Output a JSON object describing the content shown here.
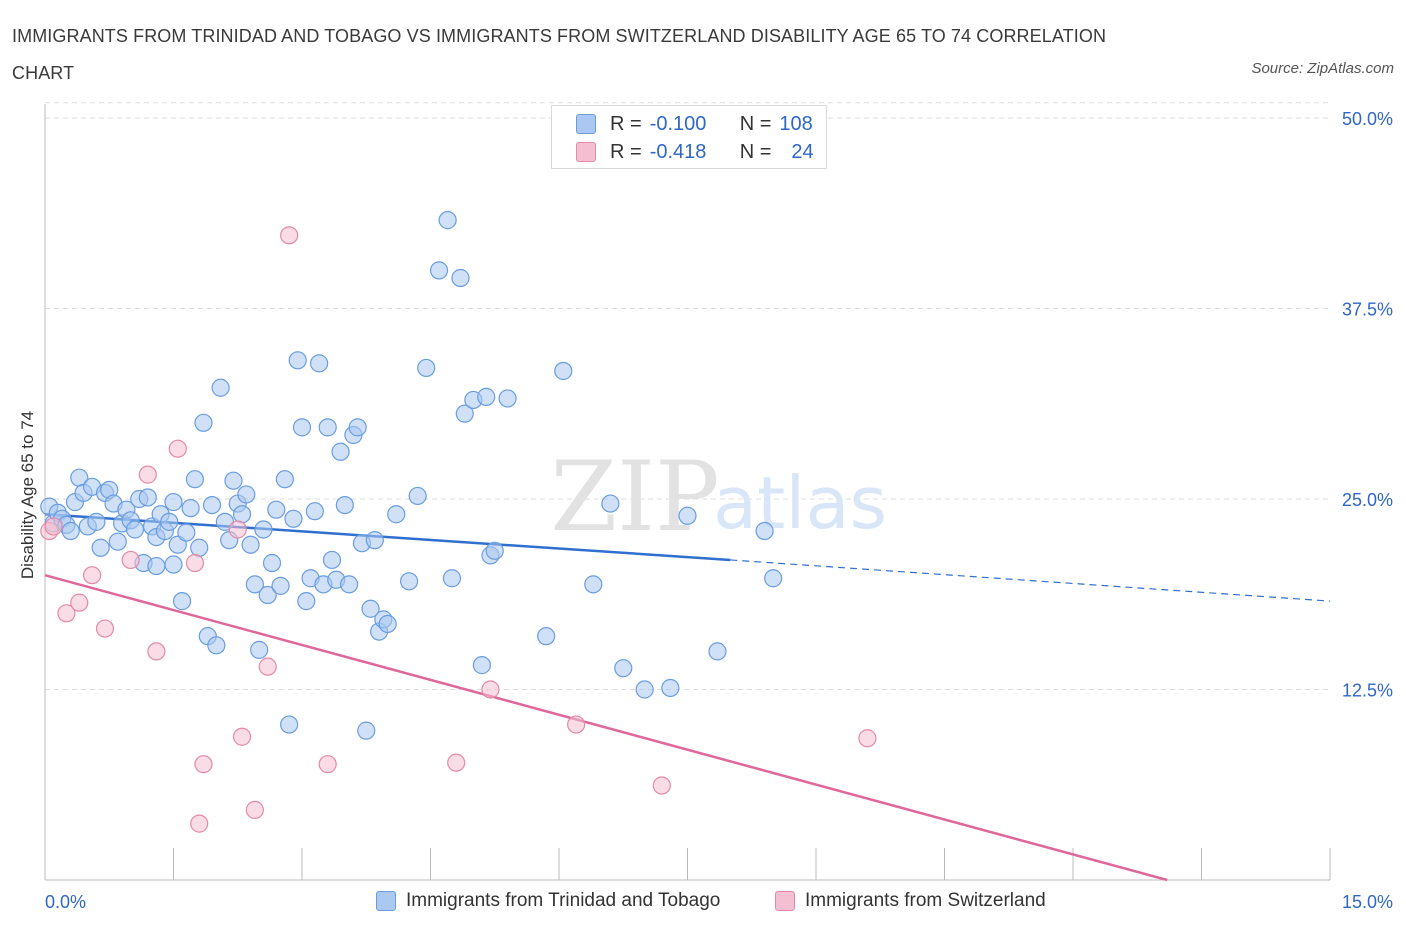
{
  "title": "IMMIGRANTS FROM TRINIDAD AND TOBAGO VS IMMIGRANTS FROM SWITZERLAND DISABILITY AGE 65 TO 74 CORRELATION CHART",
  "source": "Source: ZipAtlas.com",
  "watermark": {
    "zip": "ZIP",
    "atlas": "atlas"
  },
  "legend": {
    "rows": [
      {
        "r_label": "R =",
        "r": "-0.100",
        "n_label": "N =",
        "n": "108"
      },
      {
        "r_label": "R =",
        "r": "-0.418",
        "n_label": "N =",
        "n": "24"
      }
    ]
  },
  "colors": {
    "blue_fill": "#aac8f0",
    "blue_stroke": "#6a9de0",
    "blue_line": "#2f6fcf",
    "pink_fill": "#f4bfd0",
    "pink_stroke": "#e48aa8",
    "pink_line": "#e0679a",
    "tick_label": "#2f67c6",
    "grid": "#dddddd"
  },
  "chart_data": {
    "type": "scatter",
    "xlabel": "",
    "ylabel": "Disability Age 65 to 74",
    "xlim": [
      0,
      15
    ],
    "ylim": [
      0,
      50
    ],
    "x_ticks_labeled": [
      "0.0%",
      "15.0%"
    ],
    "y_ticks": [
      12.5,
      25.0,
      37.5,
      50.0
    ],
    "y_tick_labels": [
      "12.5%",
      "25.0%",
      "37.5%",
      "50.0%"
    ],
    "grid": "horizontal dashed",
    "legend_position": "top-center",
    "series": [
      {
        "name": "Immigrants from Trinidad and Tobago",
        "color": "blue",
        "r": -0.1,
        "n": 108,
        "trend": {
          "x": [
            0,
            8.0
          ],
          "y": [
            24.0,
            21.0
          ],
          "dashed_to": [
            15.0,
            18.3
          ]
        },
        "points": [
          [
            0.05,
            24.5
          ],
          [
            0.1,
            23.4
          ],
          [
            0.15,
            24.1
          ],
          [
            0.2,
            23.7
          ],
          [
            0.25,
            23.3
          ],
          [
            0.3,
            22.9
          ],
          [
            0.35,
            24.8
          ],
          [
            0.4,
            26.4
          ],
          [
            0.45,
            25.4
          ],
          [
            0.5,
            23.2
          ],
          [
            0.55,
            25.8
          ],
          [
            0.6,
            23.5
          ],
          [
            0.65,
            21.8
          ],
          [
            0.7,
            25.4
          ],
          [
            0.75,
            25.6
          ],
          [
            0.8,
            24.7
          ],
          [
            0.85,
            22.2
          ],
          [
            0.9,
            23.4
          ],
          [
            0.95,
            24.3
          ],
          [
            1.0,
            23.6
          ],
          [
            1.05,
            23.0
          ],
          [
            1.1,
            25.0
          ],
          [
            1.15,
            20.8
          ],
          [
            1.2,
            25.1
          ],
          [
            1.25,
            23.2
          ],
          [
            1.3,
            22.5
          ],
          [
            1.3,
            20.6
          ],
          [
            1.35,
            24.0
          ],
          [
            1.4,
            22.9
          ],
          [
            1.45,
            23.5
          ],
          [
            1.5,
            20.7
          ],
          [
            1.5,
            24.8
          ],
          [
            1.55,
            22.0
          ],
          [
            1.6,
            18.3
          ],
          [
            1.65,
            22.8
          ],
          [
            1.7,
            24.4
          ],
          [
            1.75,
            26.3
          ],
          [
            1.8,
            21.8
          ],
          [
            1.85,
            30.0
          ],
          [
            1.9,
            16.0
          ],
          [
            1.95,
            24.6
          ],
          [
            2.0,
            15.4
          ],
          [
            2.05,
            32.3
          ],
          [
            2.1,
            23.5
          ],
          [
            2.15,
            22.3
          ],
          [
            2.2,
            26.2
          ],
          [
            2.25,
            24.7
          ],
          [
            2.3,
            24.0
          ],
          [
            2.35,
            25.3
          ],
          [
            2.4,
            22.0
          ],
          [
            2.45,
            19.4
          ],
          [
            2.5,
            15.1
          ],
          [
            2.55,
            23.0
          ],
          [
            2.6,
            18.7
          ],
          [
            2.65,
            20.8
          ],
          [
            2.7,
            24.3
          ],
          [
            2.75,
            19.3
          ],
          [
            2.8,
            26.3
          ],
          [
            2.85,
            10.2
          ],
          [
            2.9,
            23.7
          ],
          [
            2.95,
            34.1
          ],
          [
            3.0,
            29.7
          ],
          [
            3.05,
            18.3
          ],
          [
            3.1,
            19.8
          ],
          [
            3.15,
            24.2
          ],
          [
            3.2,
            33.9
          ],
          [
            3.25,
            19.4
          ],
          [
            3.3,
            29.7
          ],
          [
            3.35,
            21.0
          ],
          [
            3.4,
            19.7
          ],
          [
            3.45,
            28.1
          ],
          [
            3.5,
            24.6
          ],
          [
            3.55,
            19.4
          ],
          [
            3.6,
            29.2
          ],
          [
            3.65,
            29.7
          ],
          [
            3.7,
            22.1
          ],
          [
            3.75,
            9.8
          ],
          [
            3.8,
            17.8
          ],
          [
            3.85,
            22.3
          ],
          [
            3.9,
            16.3
          ],
          [
            3.95,
            17.1
          ],
          [
            4.0,
            16.8
          ],
          [
            4.1,
            24.0
          ],
          [
            4.25,
            19.6
          ],
          [
            4.35,
            25.2
          ],
          [
            4.45,
            33.6
          ],
          [
            4.6,
            40.0
          ],
          [
            4.7,
            43.3
          ],
          [
            4.75,
            19.8
          ],
          [
            4.85,
            39.5
          ],
          [
            4.9,
            30.6
          ],
          [
            5.0,
            31.5
          ],
          [
            5.1,
            14.1
          ],
          [
            5.15,
            31.7
          ],
          [
            5.2,
            21.3
          ],
          [
            5.25,
            21.6
          ],
          [
            5.4,
            31.6
          ],
          [
            5.85,
            16.0
          ],
          [
            6.05,
            33.4
          ],
          [
            6.4,
            19.4
          ],
          [
            6.6,
            24.7
          ],
          [
            6.75,
            13.9
          ],
          [
            7.0,
            12.5
          ],
          [
            7.3,
            12.6
          ],
          [
            7.5,
            23.9
          ],
          [
            7.85,
            15.0
          ],
          [
            8.4,
            22.9
          ],
          [
            8.5,
            19.8
          ]
        ]
      },
      {
        "name": "Immigrants from Switzerland",
        "color": "pink",
        "r": -0.418,
        "n": 24,
        "trend": {
          "x": [
            0,
            13.1
          ],
          "y": [
            20.0,
            0.0
          ]
        },
        "points": [
          [
            0.05,
            22.9
          ],
          [
            0.1,
            23.2
          ],
          [
            0.25,
            17.5
          ],
          [
            0.4,
            18.2
          ],
          [
            0.55,
            20.0
          ],
          [
            0.7,
            16.5
          ],
          [
            1.0,
            21.0
          ],
          [
            1.2,
            26.6
          ],
          [
            1.3,
            15.0
          ],
          [
            1.55,
            28.3
          ],
          [
            1.75,
            20.8
          ],
          [
            1.8,
            3.7
          ],
          [
            1.85,
            7.6
          ],
          [
            2.25,
            23.0
          ],
          [
            2.3,
            9.4
          ],
          [
            2.45,
            4.6
          ],
          [
            2.6,
            14.0
          ],
          [
            2.85,
            42.3
          ],
          [
            3.3,
            7.6
          ],
          [
            4.8,
            7.7
          ],
          [
            5.2,
            12.5
          ],
          [
            6.2,
            10.2
          ],
          [
            7.2,
            6.2
          ],
          [
            9.6,
            9.3
          ]
        ]
      }
    ]
  }
}
